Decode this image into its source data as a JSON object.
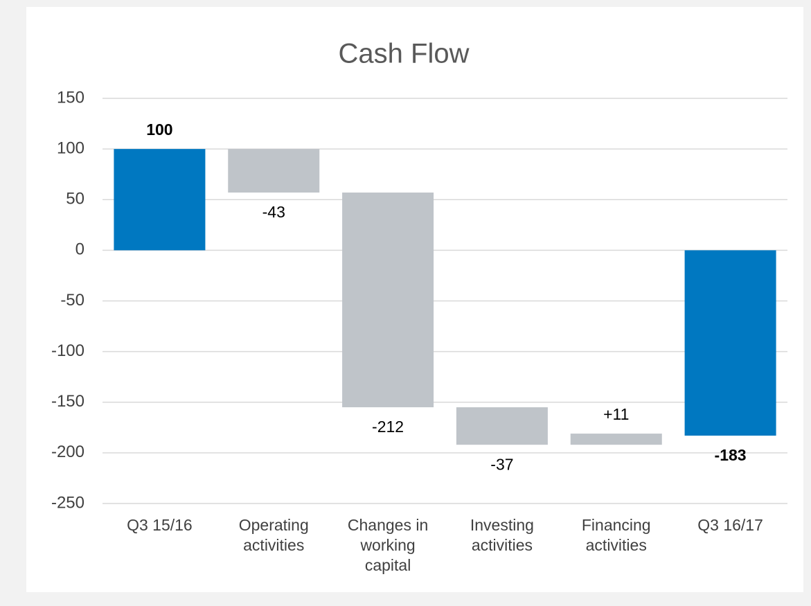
{
  "chart_data": {
    "type": "waterfall",
    "title": "Cash Flow",
    "categories": [
      "Q3 15/16",
      "Operating activities",
      "Changes in working capital",
      "Investing activities",
      "Financing activities",
      "Q3 16/17"
    ],
    "values": [
      100,
      -43,
      -212,
      -37,
      11,
      -183
    ],
    "value_labels": [
      "100",
      "-43",
      "-212",
      "-37",
      "+11",
      "-183"
    ],
    "colors": [
      "#0078c1",
      "#bfc4c9",
      "#bfc4c9",
      "#bfc4c9",
      "#bfc4c9",
      "#0078c1"
    ],
    "ylim": [
      -250,
      150
    ],
    "yticks": [
      -250,
      -200,
      -150,
      -100,
      -50,
      0,
      50,
      100,
      150
    ],
    "grid": true
  }
}
